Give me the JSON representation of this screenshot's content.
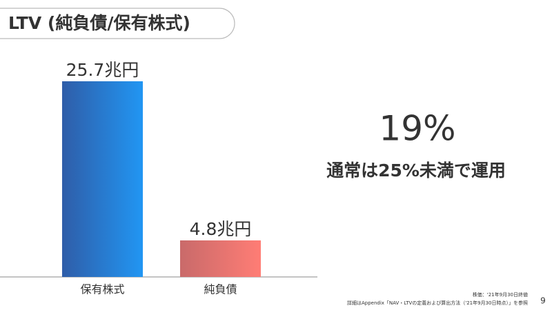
{
  "chart_data": {
    "type": "bar",
    "title": "LTV (純負債/保有株式)",
    "categories": [
      "保有株式",
      "純負債"
    ],
    "values": [
      25.7,
      4.8
    ],
    "value_labels": [
      "25.7兆円",
      "4.8兆円"
    ],
    "colors": [
      [
        "#2f5da8",
        "#2196f3"
      ],
      [
        "#c96a6a",
        "#ff7d75"
      ]
    ],
    "headline": "19%",
    "note": "通常は25%未満で運用",
    "footnotes": [
      "株価：'21年9月30日終値",
      "詳細はAppendix「NAV・LTVの定義および算出方法（'21年9月30日時点）」を参照"
    ],
    "page_number": 9
  }
}
